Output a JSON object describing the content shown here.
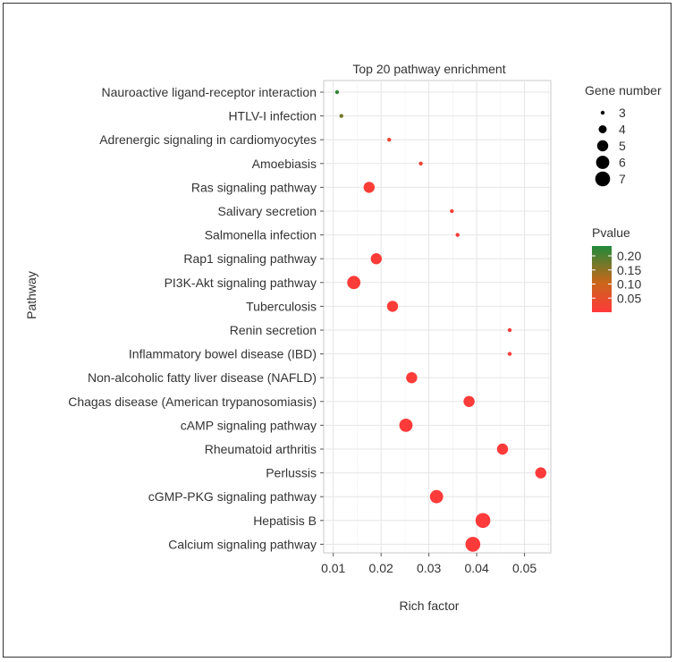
{
  "chart_data": {
    "type": "scatter",
    "title": "Top 20 pathway enrichment",
    "xlabel": "Rich factor",
    "ylabel": "Pathway",
    "xlim": [
      0.008,
      0.0555
    ],
    "xticks": [
      0.01,
      0.02,
      0.03,
      0.04,
      0.05
    ],
    "grid": true,
    "categories": [
      "Nauroactive ligand-receptor interaction",
      "HTLV-I infection",
      "Adrenergic signaling in cardiomyocytes",
      "Amoebiasis",
      "Ras signaling pathway",
      "Salivary secretion",
      "Salmonella infection",
      "Rap1 signaling pathway",
      "PI3K-Akt signaling pathway",
      "Tuberculosis",
      "Renin secretion",
      "Inflammatory bowel disease (IBD)",
      "Non-alcoholic fatty liver disease (NAFLD)",
      "Chagas disease (American trypanosomiasis)",
      "cAMP signaling pathway",
      "Rheumatoid arthritis",
      "Perlussis",
      "cGMP-PKG signaling pathway",
      "Hepatisis B",
      "Calcium signaling pathway"
    ],
    "points": [
      {
        "pathway": "Nauroactive ligand-receptor interaction",
        "rich_factor": 0.0108,
        "gene_number": 3,
        "pvalue": 0.22
      },
      {
        "pathway": "HTLV-I infection",
        "rich_factor": 0.0117,
        "gene_number": 3,
        "pvalue": 0.17
      },
      {
        "pathway": "Adrenergic signaling in cardiomyocytes",
        "rich_factor": 0.0217,
        "gene_number": 3,
        "pvalue": 0.03
      },
      {
        "pathway": "Amoebiasis",
        "rich_factor": 0.0283,
        "gene_number": 3,
        "pvalue": 0.02
      },
      {
        "pathway": "Ras signaling pathway",
        "rich_factor": 0.0175,
        "gene_number": 5,
        "pvalue": 0.01
      },
      {
        "pathway": "Salivary secretion",
        "rich_factor": 0.0348,
        "gene_number": 3,
        "pvalue": 0.01
      },
      {
        "pathway": "Salmonella infection",
        "rich_factor": 0.036,
        "gene_number": 3,
        "pvalue": 0.01
      },
      {
        "pathway": "Rap1 signaling pathway",
        "rich_factor": 0.019,
        "gene_number": 5,
        "pvalue": 0.005
      },
      {
        "pathway": "PI3K-Akt signaling pathway",
        "rich_factor": 0.0143,
        "gene_number": 6,
        "pvalue": 0.005
      },
      {
        "pathway": "Tuberculosis",
        "rich_factor": 0.0224,
        "gene_number": 5,
        "pvalue": 0.005
      },
      {
        "pathway": "Renin secretion",
        "rich_factor": 0.0469,
        "gene_number": 3,
        "pvalue": 0.005
      },
      {
        "pathway": "Inflammatory bowel disease (IBD)",
        "rich_factor": 0.0469,
        "gene_number": 3,
        "pvalue": 0.005
      },
      {
        "pathway": "Non-alcoholic fatty liver disease (NAFLD)",
        "rich_factor": 0.0264,
        "gene_number": 5,
        "pvalue": 0.003
      },
      {
        "pathway": "Chagas disease (American trypanosomiasis)",
        "rich_factor": 0.0384,
        "gene_number": 5,
        "pvalue": 0.003
      },
      {
        "pathway": "cAMP signaling pathway",
        "rich_factor": 0.0252,
        "gene_number": 6,
        "pvalue": 0.002
      },
      {
        "pathway": "Rheumatoid arthritis",
        "rich_factor": 0.0454,
        "gene_number": 5,
        "pvalue": 0.002
      },
      {
        "pathway": "Perlussis",
        "rich_factor": 0.0534,
        "gene_number": 5,
        "pvalue": 0.001
      },
      {
        "pathway": "cGMP-PKG signaling pathway",
        "rich_factor": 0.0316,
        "gene_number": 6,
        "pvalue": 0.001
      },
      {
        "pathway": "Hepatisis B",
        "rich_factor": 0.0413,
        "gene_number": 7,
        "pvalue": 0.001
      },
      {
        "pathway": "Calcium signaling pathway",
        "rich_factor": 0.0392,
        "gene_number": 7,
        "pvalue": 0.0005
      }
    ],
    "size_legend": {
      "title": "Gene number",
      "values": [
        3,
        4,
        5,
        6,
        7
      ],
      "labels": [
        "3",
        "4",
        "5",
        "6",
        "7"
      ]
    },
    "color_legend": {
      "title": "Pvalue",
      "range": [
        0.0,
        0.235
      ],
      "ticks": [
        0.2,
        0.15,
        0.1,
        0.05
      ],
      "tick_labels": [
        "0.20",
        "0.15",
        "0.10",
        "0.05"
      ],
      "low_color": "#ff3a3a",
      "mid_color": "#c9661a",
      "high_color": "#1f8a3a"
    },
    "legend_position": "right"
  }
}
